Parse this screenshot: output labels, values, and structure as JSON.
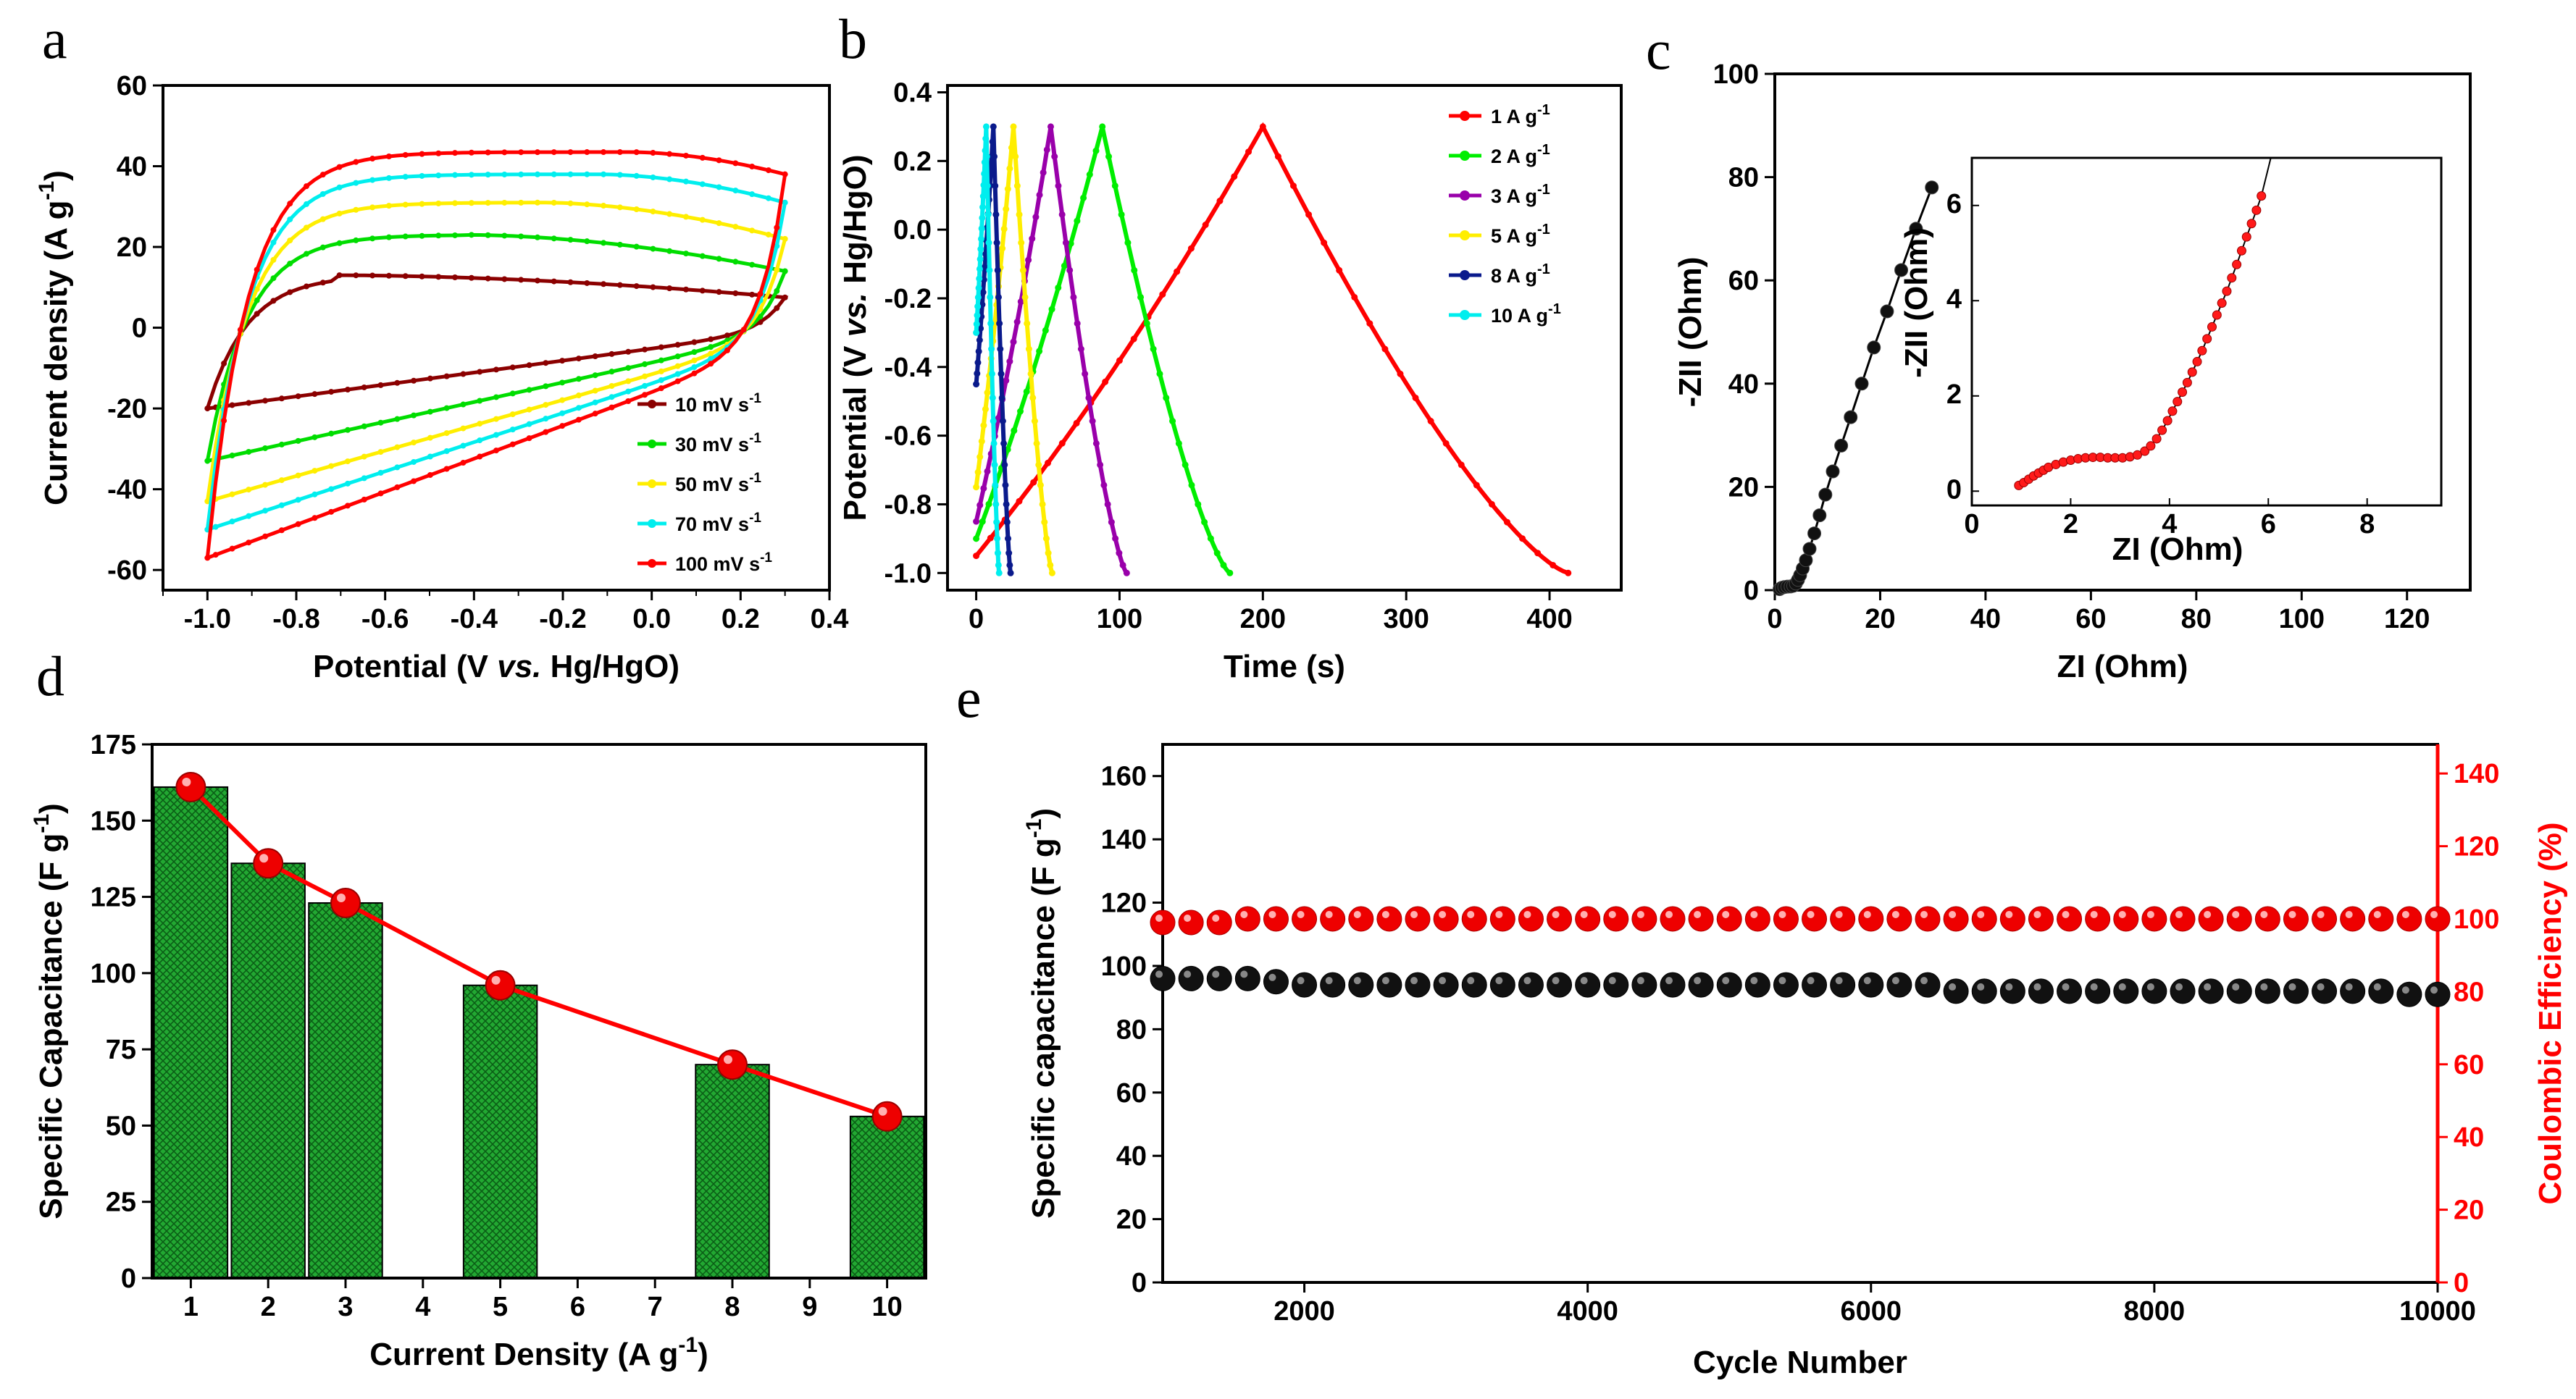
{
  "colors": {
    "axis": "#000000",
    "red": "#ff0000",
    "green": "#00ee00",
    "purple": "#9900aa",
    "yellow": "#ffee00",
    "navy": "#0a1a8c",
    "cyan": "#00eeee",
    "darkred": "#8b0000",
    "black": "#000000",
    "bar": "#1e9e2e"
  },
  "chart_data": [
    {
      "panel": "a",
      "type": "line",
      "xlabel": "Potential (V vs. Hg/HgO)",
      "xlabel_pre": "Potential (V ",
      "xlabel_it": "vs.",
      "xlabel_post": " Hg/HgO)",
      "ylabel": "Current density (A g-1)",
      "ylabel_main": "Current density (A g",
      "ylabel_sup": "-1",
      "ylabel_end": ")",
      "xlim": [
        -1.1,
        0.4
      ],
      "ylim": [
        -65,
        60
      ],
      "xticks": [
        "-1.0",
        "-0.8",
        "-0.6",
        "-0.4",
        "-0.2",
        "0.0",
        "0.2",
        "0.4"
      ],
      "yticks": [
        "-60",
        "-40",
        "-20",
        "0",
        "20",
        "40",
        "60"
      ],
      "series": [
        {
          "name": "10 mV s-1",
          "label": "10 mV s",
          "sup": "-1",
          "color": "#8b0000",
          "Ilow": -20,
          "Ihigh": 7.5,
          "Ipeak": 13,
          "peakV": -0.72
        },
        {
          "name": "30 mV s-1",
          "label": "30 mV s",
          "sup": "-1",
          "color": "#00dd00",
          "Ilow": -33,
          "Ihigh": 14,
          "Ipeak": 23,
          "peakV": -0.42
        },
        {
          "name": "50 mV s-1",
          "label": "50 mV s",
          "sup": "-1",
          "color": "#ffee00",
          "Ilow": -43,
          "Ihigh": 22,
          "Ipeak": 31,
          "peakV": -0.25
        },
        {
          "name": "70 mV s-1",
          "label": "70 mV s",
          "sup": "-1",
          "color": "#00eeee",
          "Ilow": -50,
          "Ihigh": 31,
          "Ipeak": 38,
          "peakV": -0.12
        },
        {
          "name": "100 mV s-1",
          "label": "100 mV s",
          "sup": "-1",
          "color": "#ff0000",
          "Ilow": -57,
          "Ihigh": 38,
          "Ipeak": 43.5,
          "peakV": -0.05
        }
      ]
    },
    {
      "panel": "b",
      "type": "line",
      "xlabel": "Time (s)",
      "ylabel": "Potential (V vs. Hg/HgO)",
      "ylabel_pre": "Potential (V ",
      "ylabel_it": "vs.",
      "ylabel_post": " Hg/HgO)",
      "xlim": [
        -20,
        450
      ],
      "ylim": [
        -1.05,
        0.42
      ],
      "xticks": [
        "0",
        "100",
        "200",
        "300",
        "400"
      ],
      "yticks": [
        "-1.0",
        "-0.8",
        "-0.6",
        "-0.4",
        "-0.2",
        "0.0",
        "0.2",
        "0.4"
      ],
      "series": [
        {
          "name": "1 A g-1",
          "label": "1 A g",
          "sup": "-1",
          "color": "#ff0000",
          "start": -0.95,
          "tc": 200,
          "tend": 413
        },
        {
          "name": "2 A g-1",
          "label": "2 A g",
          "sup": "-1",
          "color": "#00ee00",
          "start": -0.9,
          "tc": 88,
          "tend": 177
        },
        {
          "name": "3 A g-1",
          "label": "3 A g",
          "sup": "-1",
          "color": "#9900aa",
          "start": -0.85,
          "tc": 52,
          "tend": 105
        },
        {
          "name": "5 A g-1",
          "label": "5 A g",
          "sup": "-1",
          "color": "#ffee00",
          "start": -0.75,
          "tc": 26,
          "tend": 53
        },
        {
          "name": "8 A g-1",
          "label": "8 A g",
          "sup": "-1",
          "color": "#0a1a8c",
          "start": -0.45,
          "tc": 12,
          "tend": 24
        },
        {
          "name": "10 A g-1",
          "label": "10 A g",
          "sup": "-1",
          "color": "#00eeee",
          "start": -0.3,
          "tc": 7,
          "tend": 16
        }
      ]
    },
    {
      "panel": "c",
      "type": "scatter",
      "xlabel": "ZI (Ohm)",
      "ylabel": "-ZII (Ohm)",
      "xlim": [
        0,
        132
      ],
      "ylim": [
        0,
        100
      ],
      "xticks": [
        "0",
        "20",
        "40",
        "60",
        "80",
        "100",
        "120"
      ],
      "yticks": [
        "0",
        "20",
        "40",
        "60",
        "80",
        "100"
      ],
      "x": [
        0.9,
        1.3,
        1.8,
        2.4,
        3.0,
        3.5,
        4.0,
        4.4,
        4.8,
        5.3,
        5.9,
        6.6,
        7.5,
        8.5,
        9.6,
        11,
        12.6,
        14.4,
        16.5,
        18.8,
        21.3,
        24,
        26.8,
        29.8
      ],
      "y": [
        0.2,
        0.45,
        0.6,
        0.68,
        0.72,
        0.85,
        1.3,
        2.0,
        2.9,
        4.2,
        5.8,
        8.0,
        11,
        14.5,
        18.5,
        23,
        28,
        33.5,
        40,
        47,
        54,
        62,
        70,
        78
      ],
      "inset": {
        "xlabel": "ZI (Ohm)",
        "ylabel": "-ZII (Ohm)",
        "xlim": [
          0,
          9.5
        ],
        "ylim": [
          -0.3,
          7
        ],
        "xticks": [
          "0",
          "2",
          "4",
          "6",
          "8"
        ],
        "yticks": [
          "0",
          "2",
          "4",
          "6"
        ],
        "x": [
          0.95,
          1.05,
          1.15,
          1.25,
          1.35,
          1.45,
          1.55,
          1.7,
          1.85,
          2.0,
          2.15,
          2.3,
          2.45,
          2.6,
          2.75,
          2.9,
          3.05,
          3.2,
          3.35,
          3.5,
          3.62,
          3.74,
          3.85,
          3.96,
          4.06,
          4.16,
          4.26,
          4.36,
          4.46,
          4.56,
          4.66,
          4.76,
          4.86,
          4.96,
          5.06,
          5.16,
          5.26,
          5.36,
          5.46,
          5.56,
          5.66,
          5.76,
          5.86
        ],
        "y": [
          0.12,
          0.18,
          0.25,
          0.32,
          0.38,
          0.44,
          0.5,
          0.56,
          0.61,
          0.65,
          0.68,
          0.7,
          0.71,
          0.71,
          0.7,
          0.7,
          0.7,
          0.72,
          0.76,
          0.84,
          0.95,
          1.1,
          1.28,
          1.48,
          1.68,
          1.88,
          2.08,
          2.28,
          2.5,
          2.72,
          2.95,
          3.2,
          3.45,
          3.7,
          3.95,
          4.2,
          4.48,
          4.76,
          5.05,
          5.34,
          5.62,
          5.9,
          6.2
        ]
      }
    },
    {
      "panel": "d",
      "type": "bar",
      "xlabel": "Current Density (A g-1)",
      "xlabel_main": "Current Density (A g",
      "xlabel_sup": "-1",
      "xlabel_end": ")",
      "ylabel": "Specific Capacitance (F g-1)",
      "ylabel_main": "Specific Capacitance (F g",
      "ylabel_sup": "-1",
      "ylabel_end": ")",
      "xlim": [
        0.5,
        10.5
      ],
      "ylim": [
        0,
        175
      ],
      "xticks": [
        "1",
        "2",
        "3",
        "4",
        "5",
        "6",
        "7",
        "8",
        "9",
        "10"
      ],
      "yticks": [
        "0",
        "25",
        "50",
        "75",
        "100",
        "125",
        "150",
        "175"
      ],
      "x": [
        1,
        2,
        3,
        5,
        8,
        10
      ],
      "values": [
        161,
        136,
        123,
        96,
        70,
        53
      ]
    },
    {
      "panel": "e",
      "type": "scatter",
      "xlabel": "Cycle Number",
      "ylabel": "Specific capacitance (F g-1)",
      "ylabel_main": "Specific capacitance (F g",
      "ylabel_sup": "-1",
      "ylabel_end": ")",
      "y2label": "Coulombic Efficiency (%)",
      "xlim": [
        1000,
        10000
      ],
      "ylim": [
        0,
        170
      ],
      "y2lim": [
        0,
        148
      ],
      "xticks": [
        "2000",
        "4000",
        "6000",
        "8000",
        "10000"
      ],
      "yticks": [
        "0",
        "20",
        "40",
        "60",
        "80",
        "100",
        "120",
        "140",
        "160"
      ],
      "y2ticks": [
        "0",
        "20",
        "40",
        "60",
        "80",
        "100",
        "120",
        "140"
      ],
      "cycles_start": 1000,
      "cycles_step": 200,
      "cycles_count": 46,
      "capacitance": [
        96,
        96,
        96,
        96,
        95,
        94,
        94,
        94,
        94,
        94,
        94,
        94,
        94,
        94,
        94,
        94,
        94,
        94,
        94,
        94,
        94,
        94,
        94,
        94,
        94,
        94,
        94,
        94,
        92,
        92,
        92,
        92,
        92,
        92,
        92,
        92,
        92,
        92,
        92,
        92,
        92,
        92,
        92,
        92,
        91,
        91
      ],
      "efficiency": [
        99,
        99,
        99,
        100,
        100,
        100,
        100,
        100,
        100,
        100,
        100,
        100,
        100,
        100,
        100,
        100,
        100,
        100,
        100,
        100,
        100,
        100,
        100,
        100,
        100,
        100,
        100,
        100,
        100,
        100,
        100,
        100,
        100,
        100,
        100,
        100,
        100,
        100,
        100,
        100,
        100,
        100,
        100,
        100,
        100,
        100
      ]
    }
  ],
  "panel_labels": {
    "a": "a",
    "b": "b",
    "c": "c",
    "d": "d",
    "e": "e"
  }
}
